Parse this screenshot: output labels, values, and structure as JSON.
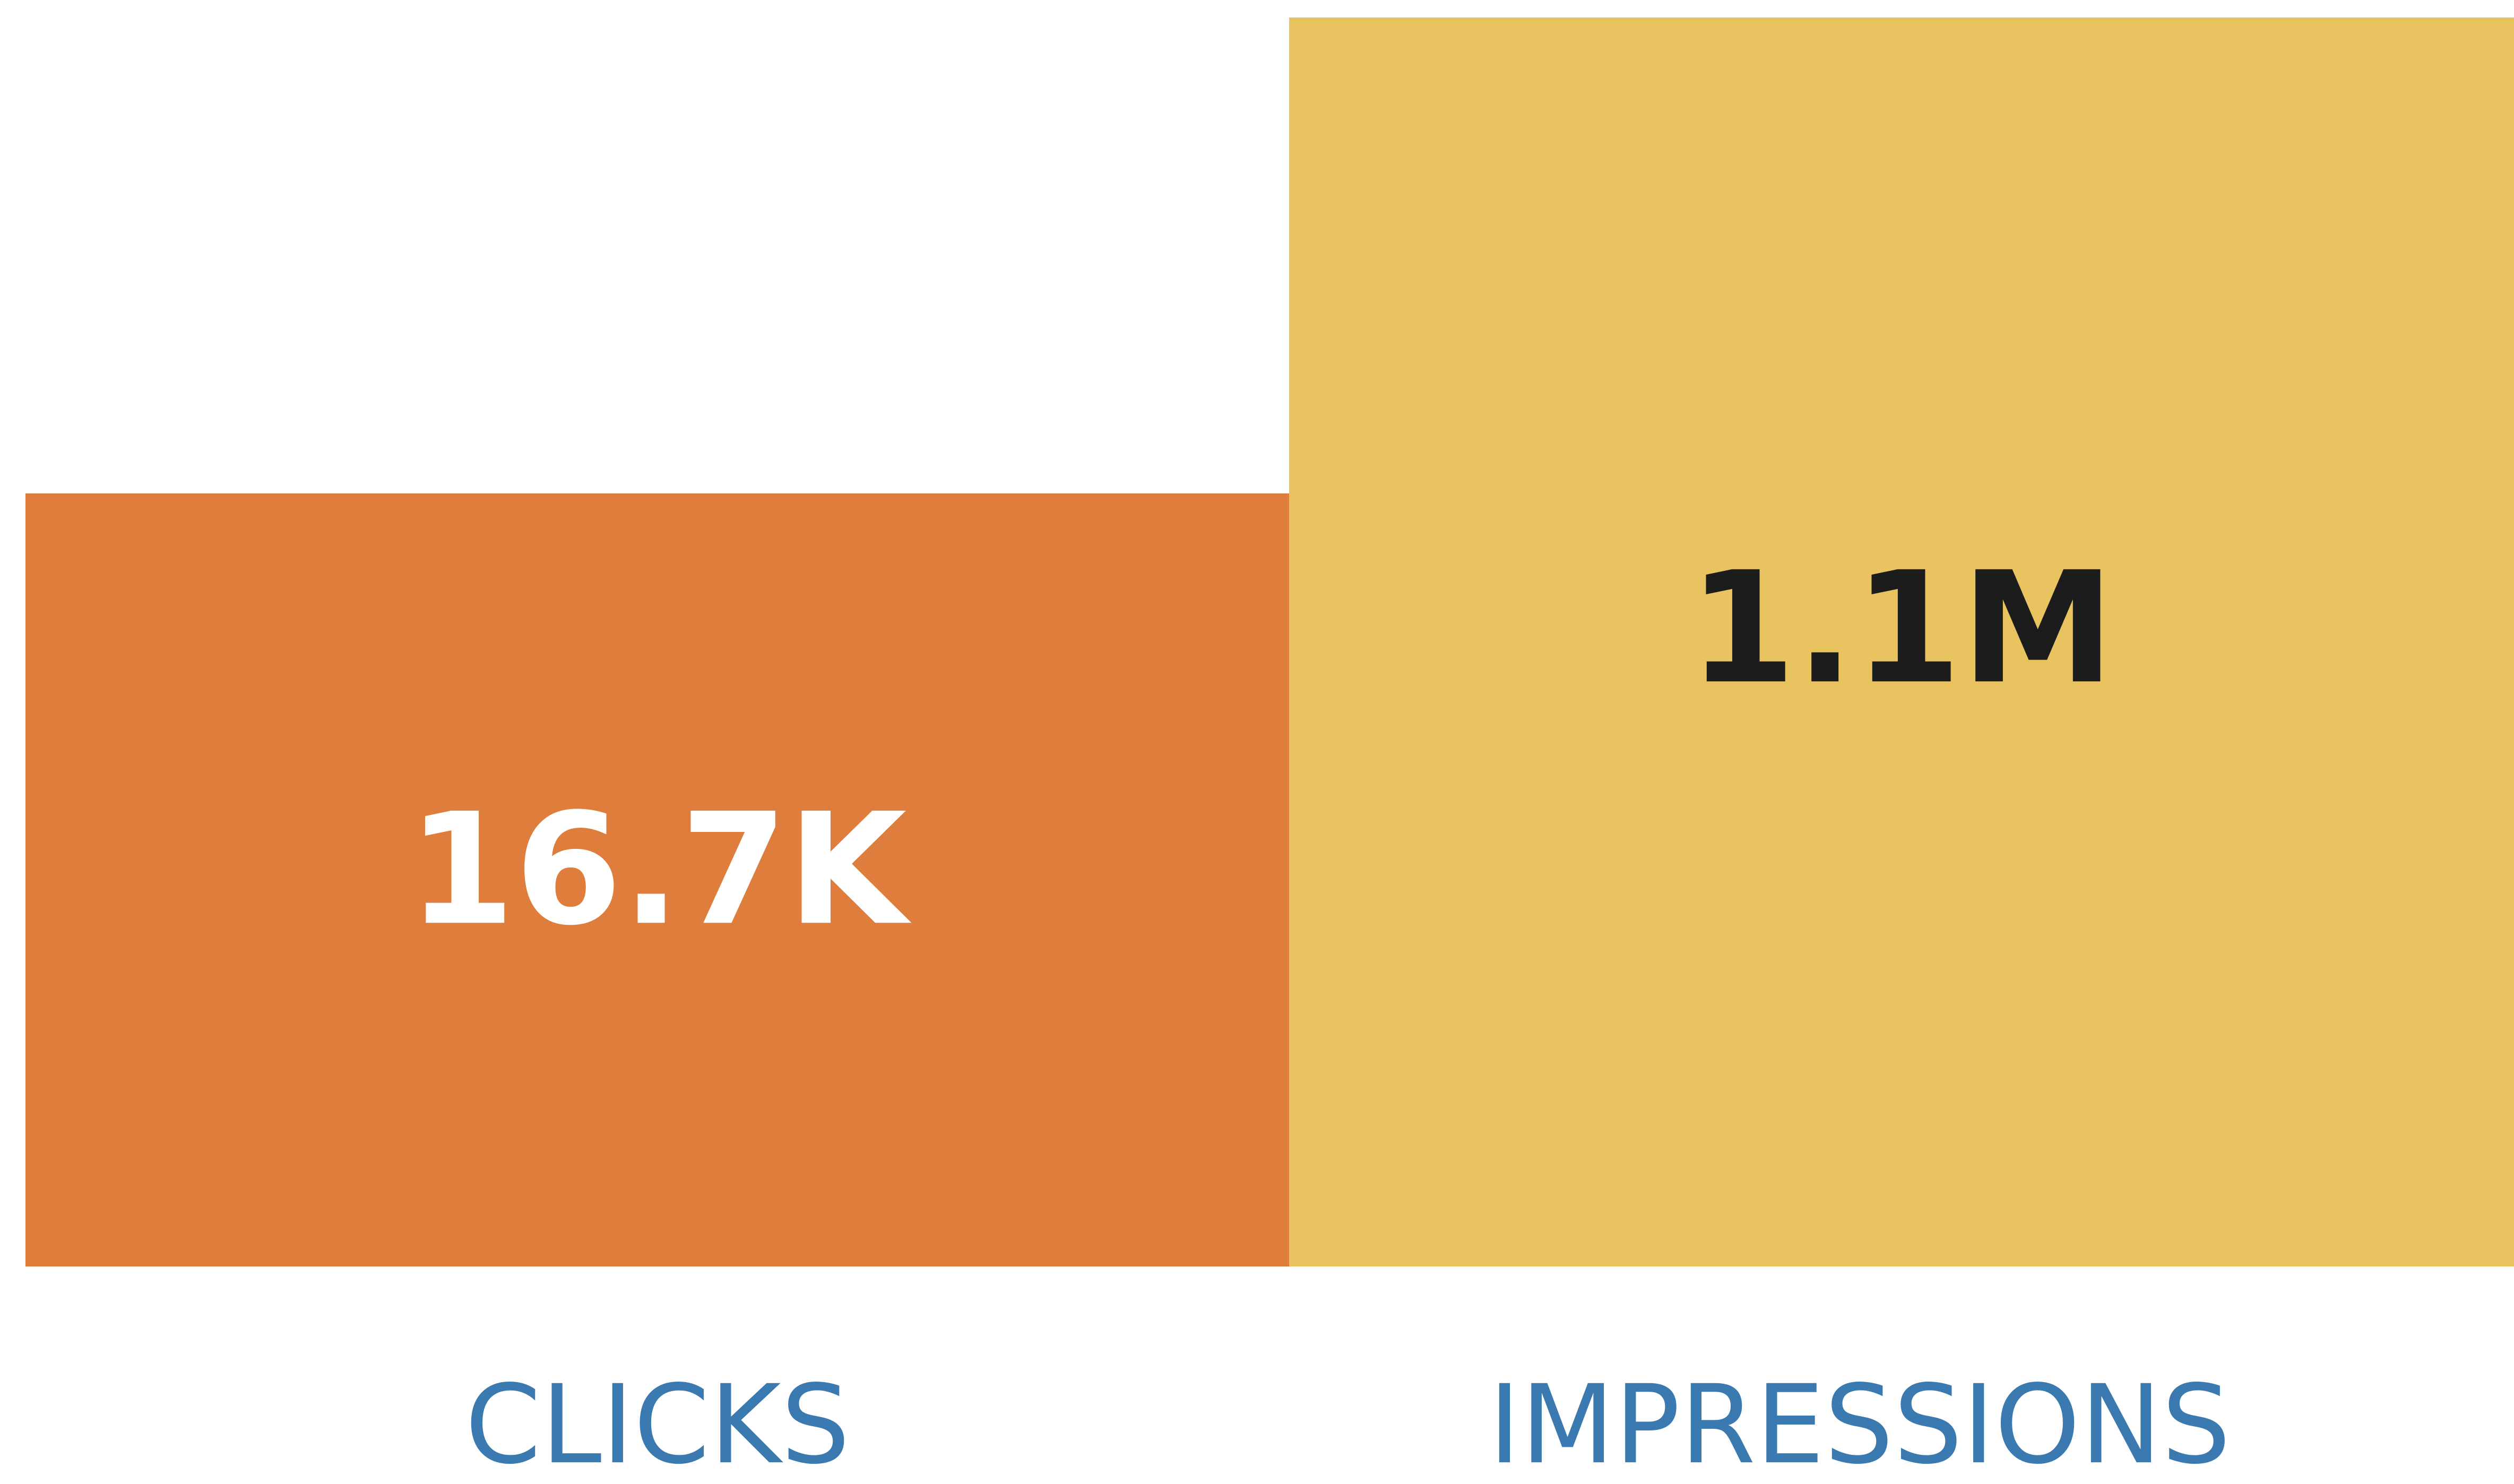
{
  "tiles": [
    {
      "label": "CLICKS",
      "value": "16.7K",
      "color": "#df7d3d",
      "text_color": "#ffffff"
    },
    {
      "label": "IMPRESSIONS",
      "value": "1.1M",
      "color": "#e9c35f",
      "text_color": "#1c1c1c"
    }
  ]
}
